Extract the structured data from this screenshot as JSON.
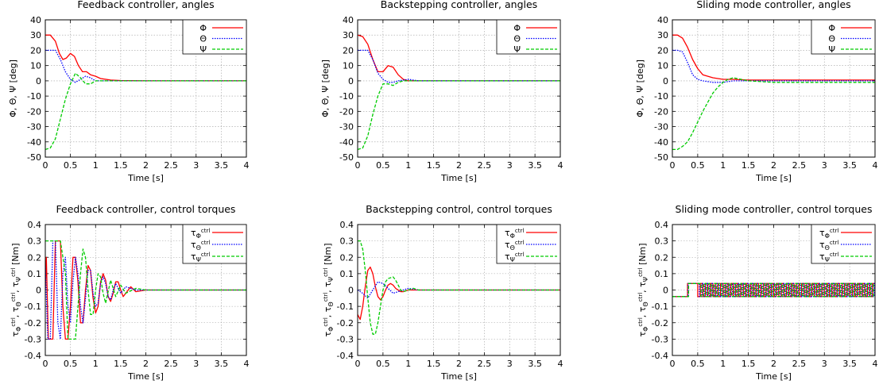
{
  "chart_data": [
    {
      "type": "line",
      "title": "Feedback controller, angles",
      "xlabel": "Time [s]",
      "ylabel": "Φ, Θ, Ψ [deg]",
      "xlim": [
        0,
        4
      ],
      "ylim": [
        -50,
        40
      ],
      "xticks": [
        0,
        0.5,
        1,
        1.5,
        2,
        2.5,
        3,
        3.5,
        4
      ],
      "yticks": [
        -50,
        -40,
        -30,
        -20,
        -10,
        0,
        10,
        20,
        30,
        40
      ],
      "grid": true,
      "legend_position": "top-right",
      "series": [
        {
          "name": "Φ",
          "color": "#ff0000",
          "dash": "solid",
          "x": [
            0,
            0.1,
            0.2,
            0.28,
            0.35,
            0.42,
            0.5,
            0.58,
            0.66,
            0.74,
            0.82,
            0.9,
            1.0,
            1.1,
            1.3,
            1.5,
            2,
            3,
            4
          ],
          "y": [
            30,
            30,
            26,
            18,
            14,
            15,
            18,
            16,
            10,
            6,
            6,
            4,
            3,
            1.5,
            0.5,
            0.2,
            0,
            0,
            0
          ]
        },
        {
          "name": "Θ",
          "color": "#0000ff",
          "dash": "dotted",
          "x": [
            0,
            0.1,
            0.2,
            0.3,
            0.4,
            0.5,
            0.6,
            0.7,
            0.8,
            0.9,
            1.0,
            1.2,
            1.5,
            2,
            3,
            4
          ],
          "y": [
            20,
            20,
            20,
            14,
            6,
            1,
            -1,
            1,
            3,
            2,
            0,
            0,
            0,
            0,
            0,
            0
          ]
        },
        {
          "name": "Ψ",
          "color": "#00cc00",
          "dash": "dashed",
          "x": [
            0,
            0.1,
            0.2,
            0.3,
            0.4,
            0.5,
            0.6,
            0.7,
            0.8,
            0.9,
            1.0,
            1.2,
            1.5,
            2,
            3,
            4
          ],
          "y": [
            -45,
            -44,
            -38,
            -25,
            -12,
            -2,
            5,
            2,
            -2,
            -2,
            0,
            0,
            0,
            0,
            0,
            0
          ]
        }
      ]
    },
    {
      "type": "line",
      "title": "Backstepping controller, angles",
      "xlabel": "Time [s]",
      "ylabel": "Φ, Θ, Ψ [deg]",
      "xlim": [
        0,
        4
      ],
      "ylim": [
        -50,
        40
      ],
      "xticks": [
        0,
        0.5,
        1,
        1.5,
        2,
        2.5,
        3,
        3.5,
        4
      ],
      "yticks": [
        -50,
        -40,
        -30,
        -20,
        -10,
        0,
        10,
        20,
        30,
        40
      ],
      "grid": true,
      "legend_position": "top-right",
      "series": [
        {
          "name": "Φ",
          "color": "#ff0000",
          "dash": "solid",
          "x": [
            0,
            0.1,
            0.2,
            0.3,
            0.4,
            0.5,
            0.6,
            0.7,
            0.8,
            0.9,
            1.0,
            1.2,
            1.5,
            2,
            3,
            4
          ],
          "y": [
            30,
            29,
            24,
            14,
            6,
            6,
            10,
            9,
            4,
            1,
            0,
            0,
            0,
            0,
            0,
            0
          ]
        },
        {
          "name": "Θ",
          "color": "#0000ff",
          "dash": "dotted",
          "x": [
            0,
            0.1,
            0.2,
            0.3,
            0.4,
            0.5,
            0.6,
            0.7,
            0.8,
            1.0,
            1.2,
            1.5,
            2,
            3,
            4
          ],
          "y": [
            20,
            20,
            20,
            14,
            5,
            1,
            -1,
            -1,
            0,
            1,
            0,
            0,
            0,
            0,
            0
          ]
        },
        {
          "name": "Ψ",
          "color": "#00cc00",
          "dash": "dashed",
          "x": [
            0,
            0.1,
            0.2,
            0.3,
            0.4,
            0.5,
            0.6,
            0.7,
            0.8,
            0.9,
            1.0,
            1.2,
            1.5,
            2,
            3,
            4
          ],
          "y": [
            -45,
            -44,
            -36,
            -22,
            -10,
            -2,
            -2,
            -3,
            -1,
            0,
            0,
            0,
            0,
            0,
            0,
            0
          ]
        }
      ]
    },
    {
      "type": "line",
      "title": "Sliding mode controller, angles",
      "xlabel": "Time [s]",
      "ylabel": "Φ, Θ, Ψ [deg]",
      "xlim": [
        0,
        4
      ],
      "ylim": [
        -50,
        40
      ],
      "xticks": [
        0,
        0.5,
        1,
        1.5,
        2,
        2.5,
        3,
        3.5,
        4
      ],
      "yticks": [
        -50,
        -40,
        -30,
        -20,
        -10,
        0,
        10,
        20,
        30,
        40
      ],
      "grid": true,
      "legend_position": "top-right",
      "series": [
        {
          "name": "Φ",
          "color": "#ff0000",
          "dash": "solid",
          "x": [
            0,
            0.1,
            0.2,
            0.3,
            0.4,
            0.5,
            0.6,
            0.7,
            0.8,
            0.9,
            1.0,
            1.2,
            1.5,
            2,
            2.5,
            3,
            3.5,
            4
          ],
          "y": [
            30,
            30,
            28,
            22,
            14,
            8,
            4,
            3,
            2,
            1.5,
            1,
            1,
            0.5,
            0.5,
            0.5,
            0.5,
            0.5,
            0.5
          ]
        },
        {
          "name": "Θ",
          "color": "#0000ff",
          "dash": "dotted",
          "x": [
            0,
            0.1,
            0.2,
            0.3,
            0.4,
            0.5,
            0.6,
            0.8,
            1.0,
            1.2,
            1.5,
            2,
            3,
            4
          ],
          "y": [
            20,
            20,
            19,
            12,
            4,
            1,
            0,
            -1,
            -1,
            0,
            0,
            0,
            0,
            0
          ]
        },
        {
          "name": "Ψ",
          "color": "#00cc00",
          "dash": "dashed",
          "x": [
            0,
            0.1,
            0.2,
            0.3,
            0.4,
            0.5,
            0.6,
            0.7,
            0.8,
            0.9,
            1.0,
            1.1,
            1.2,
            1.5,
            2,
            3,
            4
          ],
          "y": [
            -45,
            -45,
            -43,
            -40,
            -34,
            -27,
            -20,
            -14,
            -8,
            -4,
            -1,
            1,
            2,
            0,
            -1,
            -1,
            -1
          ]
        }
      ]
    },
    {
      "type": "line",
      "title": "Feedback controller, control torques",
      "xlabel": "Time [s]",
      "ylabel": "τΦctrl, τΘctrl, τΨctrl [Nm]",
      "xlim": [
        0,
        4
      ],
      "ylim": [
        -0.4,
        0.4
      ],
      "xticks": [
        0,
        0.5,
        1,
        1.5,
        2,
        2.5,
        3,
        3.5,
        4
      ],
      "yticks": [
        -0.4,
        -0.3,
        -0.2,
        -0.1,
        0,
        0.1,
        0.2,
        0.3,
        0.4
      ],
      "grid": true,
      "legend_position": "top-right",
      "series": [
        {
          "name": "τΦctrl",
          "color": "#ff0000",
          "dash": "solid",
          "x": [
            0,
            0.02,
            0.06,
            0.1,
            0.15,
            0.2,
            0.25,
            0.3,
            0.35,
            0.4,
            0.45,
            0.5,
            0.55,
            0.6,
            0.65,
            0.7,
            0.75,
            0.8,
            0.85,
            0.9,
            0.95,
            1.0,
            1.05,
            1.1,
            1.15,
            1.2,
            1.25,
            1.3,
            1.35,
            1.4,
            1.45,
            1.5,
            1.55,
            1.6,
            1.7,
            1.8,
            2,
            2.5,
            3,
            4
          ],
          "y": [
            0,
            0.2,
            -0.3,
            -0.3,
            -0.3,
            0.3,
            0.3,
            0.3,
            -0.1,
            -0.3,
            -0.3,
            -0.1,
            0.2,
            0.2,
            0.05,
            -0.2,
            -0.2,
            0,
            0.15,
            0.12,
            -0.05,
            -0.14,
            -0.1,
            0.05,
            0.1,
            0.06,
            -0.04,
            -0.07,
            -0.02,
            0.05,
            0.05,
            0,
            -0.04,
            -0.02,
            0.02,
            -0.01,
            0,
            0,
            0,
            0
          ]
        },
        {
          "name": "τΘctrl",
          "color": "#0000ff",
          "dash": "dotted",
          "x": [
            0,
            0.05,
            0.1,
            0.15,
            0.2,
            0.25,
            0.3,
            0.35,
            0.4,
            0.45,
            0.5,
            0.55,
            0.6,
            0.65,
            0.7,
            0.75,
            0.8,
            0.85,
            0.9,
            0.95,
            1.0,
            1.05,
            1.1,
            1.15,
            1.2,
            1.25,
            1.3,
            1.35,
            1.4,
            1.5,
            1.6,
            1.8,
            2,
            3,
            4
          ],
          "y": [
            0.15,
            -0.3,
            -0.3,
            0.3,
            0.3,
            -0.2,
            -0.3,
            0.1,
            0.2,
            -0.1,
            -0.2,
            0.05,
            0.2,
            0.1,
            -0.1,
            -0.2,
            -0.05,
            0.12,
            0.12,
            -0.02,
            -0.1,
            -0.08,
            0.04,
            0.08,
            0.04,
            -0.04,
            -0.06,
            0,
            0.04,
            -0.02,
            0.02,
            0,
            0,
            0,
            0
          ]
        },
        {
          "name": "τΨctrl",
          "color": "#00cc00",
          "dash": "dashed",
          "x": [
            0,
            0.05,
            0.1,
            0.3,
            0.4,
            0.45,
            0.5,
            0.55,
            0.6,
            0.7,
            0.75,
            0.8,
            0.85,
            0.9,
            0.95,
            1.0,
            1.05,
            1.1,
            1.15,
            1.2,
            1.3,
            1.4,
            1.5,
            1.6,
            1.8,
            2,
            3,
            4
          ],
          "y": [
            0.3,
            0.3,
            0.3,
            0.3,
            0.1,
            -0.3,
            -0.3,
            -0.3,
            -0.3,
            0.1,
            0.25,
            0.2,
            0,
            -0.15,
            -0.15,
            0,
            0.1,
            0.08,
            -0.02,
            -0.08,
            0.06,
            -0.04,
            0.03,
            -0.02,
            0.01,
            0,
            0,
            0
          ]
        }
      ]
    },
    {
      "type": "line",
      "title": "Backstepping control, control torques",
      "xlabel": "Time [s]",
      "ylabel": "τΦctrl, τΘctrl, τΨctrl [Nm]",
      "xlim": [
        0,
        4
      ],
      "ylim": [
        -0.4,
        0.4
      ],
      "xticks": [
        0,
        0.5,
        1,
        1.5,
        2,
        2.5,
        3,
        3.5,
        4
      ],
      "yticks": [
        -0.4,
        -0.3,
        -0.2,
        -0.1,
        0,
        0.1,
        0.2,
        0.3,
        0.4
      ],
      "grid": true,
      "legend_position": "top-right",
      "series": [
        {
          "name": "τΦctrl",
          "color": "#ff0000",
          "dash": "solid",
          "x": [
            0,
            0.05,
            0.1,
            0.15,
            0.2,
            0.25,
            0.3,
            0.35,
            0.4,
            0.45,
            0.5,
            0.55,
            0.6,
            0.65,
            0.7,
            0.75,
            0.8,
            0.85,
            0.9,
            1.0,
            1.2,
            1.5,
            2,
            3,
            4
          ],
          "y": [
            -0.15,
            -0.18,
            -0.1,
            0.02,
            0.12,
            0.14,
            0.1,
            0.02,
            -0.04,
            -0.06,
            -0.04,
            0,
            0.03,
            0.04,
            0.03,
            0.01,
            0,
            -0.01,
            -0.01,
            0,
            0,
            0,
            0,
            0,
            0
          ]
        },
        {
          "name": "τΘctrl",
          "color": "#0000ff",
          "dash": "dotted",
          "x": [
            0,
            0.1,
            0.2,
            0.3,
            0.4,
            0.5,
            0.6,
            0.7,
            0.8,
            0.9,
            1.0,
            1.2,
            1.5,
            2,
            3,
            4
          ],
          "y": [
            0,
            -0.02,
            -0.05,
            0,
            0.05,
            0.04,
            0.01,
            -0.02,
            -0.01,
            0,
            0.01,
            0,
            0,
            0,
            0,
            0
          ]
        },
        {
          "name": "τΨctrl",
          "color": "#00cc00",
          "dash": "dashed",
          "x": [
            0,
            0.05,
            0.1,
            0.15,
            0.2,
            0.25,
            0.3,
            0.35,
            0.4,
            0.45,
            0.5,
            0.55,
            0.6,
            0.7,
            0.75,
            0.8,
            0.85,
            0.9,
            1.0,
            1.1,
            1.2,
            1.5,
            2,
            3,
            4
          ],
          "y": [
            0.3,
            0.3,
            0.25,
            0.12,
            -0.05,
            -0.2,
            -0.27,
            -0.27,
            -0.2,
            -0.1,
            0,
            0.05,
            0.07,
            0.08,
            0.06,
            0.03,
            0,
            -0.01,
            0,
            0.01,
            0,
            0,
            0,
            0,
            0
          ]
        }
      ]
    },
    {
      "type": "line",
      "title": "Sliding mode controller, control torques",
      "xlabel": "Time [s]",
      "ylabel": "τΦctrl, τΘctrl, τΨctrl [Nm]",
      "xlim": [
        0,
        4
      ],
      "ylim": [
        -0.4,
        0.4
      ],
      "xticks": [
        0,
        0.5,
        1,
        1.5,
        2,
        2.5,
        3,
        3.5,
        4
      ],
      "yticks": [
        -0.4,
        -0.3,
        -0.2,
        -0.1,
        0,
        0.1,
        0.2,
        0.3,
        0.4
      ],
      "grid": true,
      "legend_position": "top-right",
      "switching": {
        "amplitude": 0.04,
        "first_switch_s": 0.3,
        "chatter_start_s": 0.5,
        "chatter_period_s": 0.1
      },
      "series": [
        {
          "name": "τΦctrl",
          "color": "#ff0000",
          "dash": "solid"
        },
        {
          "name": "τΘctrl",
          "color": "#0000ff",
          "dash": "dotted"
        },
        {
          "name": "τΨctrl",
          "color": "#00cc00",
          "dash": "dashed"
        }
      ]
    }
  ]
}
